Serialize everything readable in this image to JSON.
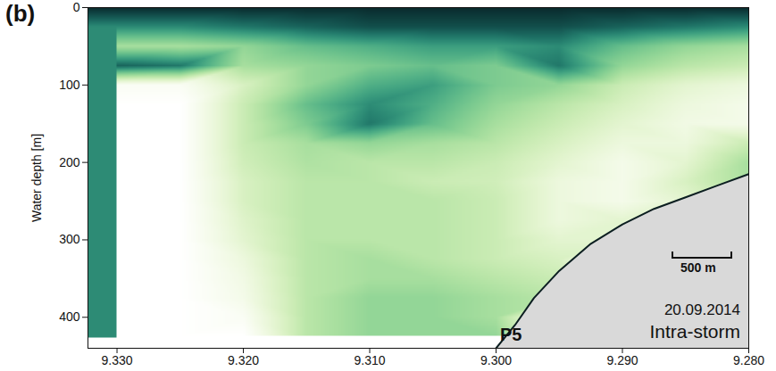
{
  "chart_data": {
    "type": "heatmap",
    "panel_label": "(b)",
    "y_label": "Water depth [m]",
    "xlim": [
      9.3323,
      9.28
    ],
    "xticks": [
      {
        "value": 9.33,
        "label": "9.330"
      },
      {
        "value": 9.32,
        "label": "9.320"
      },
      {
        "value": 9.31,
        "label": "9.310"
      },
      {
        "value": 9.3,
        "label": "9.300"
      },
      {
        "value": 9.29,
        "label": "9.290"
      },
      {
        "value": 9.28,
        "label": "9.280"
      }
    ],
    "ylim": [
      0,
      440
    ],
    "yticks": [
      0,
      100,
      200,
      300,
      400
    ],
    "zlim": [
      0,
      100
    ],
    "cells": {
      "x": [
        9.33,
        9.325,
        9.32,
        9.315,
        9.31,
        9.305,
        9.3,
        9.295,
        9.29,
        9.285,
        9.28
      ],
      "y": [
        0,
        25,
        50,
        75,
        100,
        125,
        150,
        175,
        200,
        225,
        250,
        275,
        300,
        325,
        350,
        375,
        400,
        425
      ],
      "values": [
        [
          95,
          95,
          95,
          95,
          95,
          95,
          95,
          95,
          95,
          95,
          95
        ],
        [
          70,
          70,
          75,
          80,
          85,
          85,
          85,
          85,
          80,
          75,
          70
        ],
        [
          40,
          40,
          45,
          55,
          60,
          65,
          65,
          70,
          55,
          45,
          40
        ],
        [
          80,
          75,
          40,
          45,
          50,
          55,
          50,
          75,
          45,
          35,
          30
        ],
        [
          5,
          5,
          25,
          45,
          60,
          65,
          50,
          45,
          30,
          20,
          15
        ],
        [
          0,
          0,
          30,
          55,
          70,
          60,
          45,
          35,
          25,
          15,
          10
        ],
        [
          0,
          0,
          30,
          50,
          75,
          55,
          40,
          30,
          20,
          12,
          10
        ],
        [
          0,
          0,
          30,
          40,
          45,
          40,
          35,
          25,
          15,
          15,
          30
        ],
        [
          0,
          0,
          28,
          38,
          35,
          35,
          30,
          20,
          10,
          20,
          40
        ],
        [
          0,
          0,
          25,
          35,
          35,
          30,
          28,
          15,
          10,
          25,
          40
        ],
        [
          0,
          0,
          25,
          35,
          35,
          35,
          30,
          15,
          10,
          20,
          20
        ],
        [
          0,
          0,
          22,
          35,
          35,
          35,
          30,
          15,
          20,
          0,
          0
        ],
        [
          0,
          0,
          20,
          35,
          35,
          35,
          30,
          20,
          20,
          0,
          0
        ],
        [
          0,
          0,
          15,
          35,
          40,
          35,
          30,
          25,
          0,
          0,
          0
        ],
        [
          0,
          0,
          12,
          35,
          40,
          40,
          35,
          30,
          0,
          0,
          0
        ],
        [
          0,
          0,
          10,
          35,
          45,
          45,
          40,
          35,
          0,
          0,
          0
        ],
        [
          0,
          0,
          5,
          35,
          45,
          45,
          40,
          0,
          0,
          0,
          0
        ],
        [
          0,
          0,
          0,
          35,
          45,
          45,
          45,
          0,
          0,
          0,
          0
        ]
      ]
    },
    "seafloor": {
      "label": "P5",
      "x": [
        9.3,
        9.2985,
        9.297,
        9.295,
        9.2925,
        9.29,
        9.2875,
        9.285,
        9.2825,
        9.28
      ],
      "y": [
        440,
        410,
        375,
        340,
        305,
        280,
        260,
        245,
        230,
        215
      ]
    },
    "scale_bar": "500 m",
    "annotations": [
      "20.09.2014",
      "Intra-storm"
    ]
  }
}
